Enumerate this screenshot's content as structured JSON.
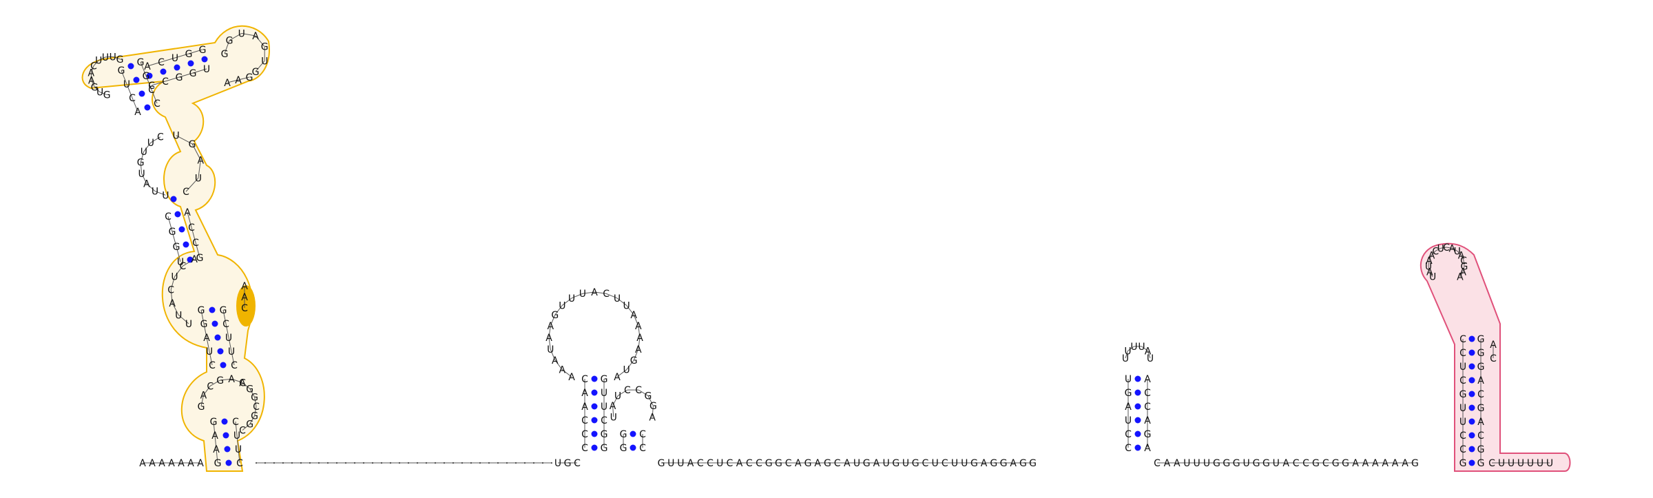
{
  "colors": {
    "background": "#ffffff",
    "nucleotide_text": "#111111",
    "backbone": "#555555",
    "base_pair_dot": "#1414ff",
    "orange_outline": "#f0b400",
    "orange_fill": "#fdf6e4",
    "orange_highlight": "#f0b400",
    "pink_outline": "#e0507a",
    "pink_fill": "#fbe1e6"
  },
  "structure": {
    "five_prime_tail": "AAAAAAA",
    "orange_hairpin": {
      "stem1_left": "GAAG",
      "stem1_right": "CUUC",
      "loop1_left": "GACGAA",
      "loop1_right": "CGGCGGC",
      "stem2_left": "CUAGGAG",
      "stem2_right": "CUUCGGA",
      "loop2_left": "UUACUCA",
      "loop2_right": "UGAAGCAUCCUACC",
      "stem3_left": "UGGC",
      "stem3_right": "GCCA",
      "loop3_left": "UUAUGUUC",
      "loop3_right": "CUAGU",
      "stem4_left": "ACUGG",
      "stem4_right": "CCGGU",
      "loop4_top": "GGUAGUG",
      "loop4_right": "AAG",
      "loop5_left": "GUGAACUUUG",
      "highlight": "AAC"
    },
    "unpaired_linker": "··································",
    "hairpin_a": {
      "stem_left": "CCCAAC",
      "stem_right": "GGCUUG",
      "loop": "AAAUAAGUUUACUUAAAAGUA"
    },
    "hairpin_b": {
      "stem_left": "GG",
      "stem_right": "CC",
      "loop": "UAUCCGGA"
    },
    "linker_2": "UGC",
    "linker_3": "GUUACCUCACCGGCAGAGCAUGAUGUGCUCUUGAGGAGG",
    "hairpin_c": {
      "stem_left": "CCUAGU",
      "stem_right": "AGACCA",
      "loop": "UUUUAU"
    },
    "linker_4": "CAAUUUGGGUGGUACCGCGGAAAAAAG",
    "pink_hairpin": {
      "stem_left": "GCCUUGCUCC",
      "stem_right": "GGCAGCAGGG",
      "loop": "UAUAACUCAUACGAA",
      "extra_right": "AC"
    },
    "three_prime_tail": "CUUUUUU"
  }
}
